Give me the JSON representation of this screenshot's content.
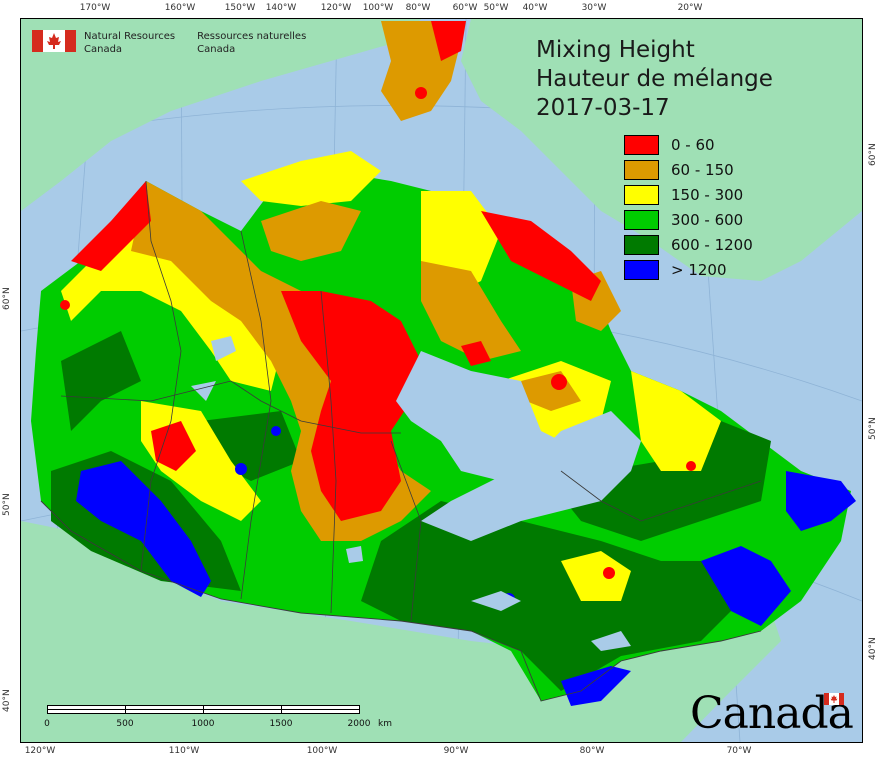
{
  "map": {
    "title_en": "Mixing Height",
    "title_fr": "Hauteur de mélange",
    "date": "2017-03-17",
    "legend": [
      {
        "label": "0 - 60",
        "color": "#ff0000"
      },
      {
        "label": "60 - 150",
        "color": "#dd9a00"
      },
      {
        "label": "150 - 300",
        "color": "#ffff00"
      },
      {
        "label": "300 - 600",
        "color": "#00cc00"
      },
      {
        "label": "600 - 1200",
        "color": "#007a00"
      },
      {
        "label": "> 1200",
        "color": "#0000ff"
      }
    ],
    "top_longitudes": [
      "170°W",
      "160°W",
      "150°W",
      "140°W",
      "120°W",
      "100°W",
      "80°W",
      "60°W",
      "50°W",
      "40°W",
      "30°W",
      "20°W"
    ],
    "bottom_longitudes": [
      "120°W",
      "110°W",
      "100°W",
      "90°W",
      "80°W",
      "70°W"
    ],
    "left_latitudes": [
      "60°N",
      "50°N",
      "40°N"
    ],
    "right_latitudes": [
      "60°N",
      "50°N",
      "40°N"
    ],
    "scale_labels": [
      "0",
      "500",
      "1000",
      "1500",
      "2000"
    ],
    "scale_unit": "km",
    "agency_en": [
      "Natural Resources",
      "Canada"
    ],
    "agency_fr": [
      "Ressources naturelles",
      "Canada"
    ],
    "wordmark": "Canada",
    "colors": {
      "ocean": "#a9cbe8",
      "foreign_land": "#9fe0b5",
      "border": "#3a3a3a",
      "flag_red": "#d52b1e"
    }
  }
}
